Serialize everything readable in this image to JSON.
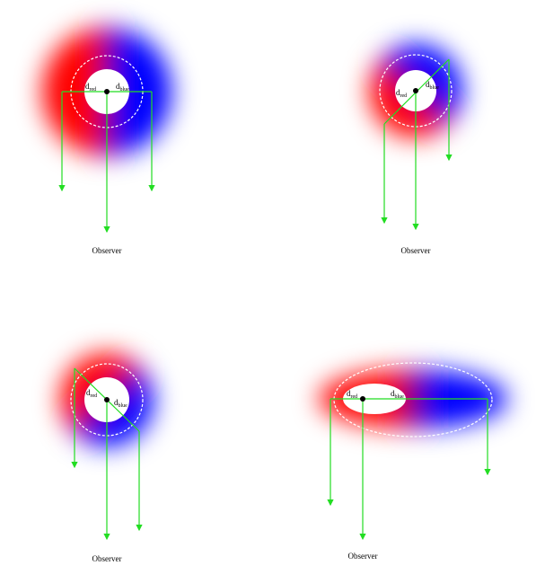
{
  "panels": [
    {
      "d_red": {
        "symbol": "d",
        "subscript": "red"
      },
      "d_blue": {
        "symbol": "d",
        "subscript": "blue"
      },
      "observer": "Observer"
    },
    {
      "d_red": {
        "symbol": "d",
        "subscript": "red"
      },
      "d_blue": {
        "symbol": "d",
        "subscript": "blue"
      },
      "observer": "Observer"
    },
    {
      "d_red": {
        "symbol": "d",
        "subscript": "red"
      },
      "d_blue": {
        "symbol": "d",
        "subscript": "blue"
      },
      "observer": "Observer"
    },
    {
      "d_red": {
        "symbol": "d",
        "subscript": "red"
      },
      "d_blue": {
        "symbol": "d",
        "subscript": "blue"
      },
      "observer": "Observer"
    }
  ]
}
